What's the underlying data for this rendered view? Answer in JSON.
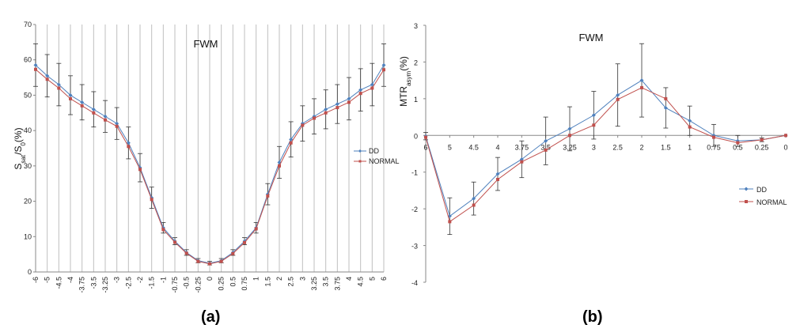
{
  "panel_labels": [
    "(a)",
    "(b)"
  ],
  "chart_data": [
    {
      "type": "line",
      "title": "FWM",
      "ylabel_main": "S",
      "ylabel_sub1": "sat",
      "ylabel_mid": "/S",
      "ylabel_sub2": "0",
      "ylabel_end": "(%)",
      "ylim": [
        0,
        70
      ],
      "yticks": [
        0,
        10,
        20,
        30,
        40,
        50,
        60,
        70
      ],
      "grid": "vertical",
      "legend_position": "right",
      "x": [
        "-6",
        "-5",
        "-4.5",
        "-4",
        "-3.75",
        "-3.5",
        "-3.25",
        "-3",
        "-2.5",
        "-2",
        "-1.5",
        "-1",
        "-0.75",
        "-0.5",
        "-0.25",
        "0",
        "0.25",
        "0.5",
        "0.75",
        "1",
        "1.5",
        "2",
        "2.5",
        "3",
        "3.25",
        "3.5",
        "3.75",
        "4",
        "4.5",
        "5",
        "6"
      ],
      "series": [
        {
          "name": "DD",
          "color": "#4f81bd",
          "values": [
            58.5,
            55.5,
            53,
            50,
            48,
            46,
            44,
            42,
            36.5,
            29.5,
            21,
            12.5,
            8.7,
            5.5,
            3.2,
            2.5,
            3.2,
            5.5,
            8.7,
            12.5,
            22,
            31,
            37.5,
            42,
            44,
            46,
            47.5,
            49,
            51.5,
            53,
            58.5
          ]
        },
        {
          "name": "NORMAL",
          "color": "#c0504d",
          "values": [
            57.3,
            54.5,
            52,
            49,
            47,
            45,
            43,
            41.2,
            35.5,
            29,
            20.5,
            12,
            8.4,
            5.3,
            3,
            2.3,
            3,
            5.2,
            8.3,
            12.2,
            21.5,
            30,
            36.5,
            41.5,
            43.5,
            45,
            46.5,
            48,
            50.5,
            52,
            57.2
          ]
        }
      ],
      "error_bars": [
        6,
        6,
        6,
        5.5,
        5,
        5,
        4.5,
        4.5,
        4.5,
        4,
        3,
        1.5,
        1,
        0.8,
        0.6,
        0.5,
        0.6,
        0.8,
        1,
        1.5,
        3,
        4.5,
        5,
        5,
        5,
        5.5,
        5.5,
        6,
        6,
        6,
        6
      ]
    },
    {
      "type": "line",
      "title": "FWM",
      "ylabel_main": "MTR",
      "ylabel_sub": "asym",
      "ylabel_end": "(%)",
      "ylim": [
        -4,
        3
      ],
      "yticks": [
        -4,
        -3,
        -2,
        -1,
        0,
        1,
        2,
        3
      ],
      "grid": "none",
      "legend_position": "lower-right",
      "x": [
        "6",
        "5",
        "4.5",
        "4",
        "3.75",
        "3.5",
        "3.25",
        "3",
        "2.5",
        "2",
        "1.5",
        "1",
        "0.75",
        "0.5",
        "0.25",
        "0"
      ],
      "series": [
        {
          "name": "DD",
          "color": "#4f81bd",
          "values": [
            -0.02,
            -2.2,
            -1.72,
            -1.05,
            -0.65,
            -0.15,
            0.18,
            0.55,
            1.1,
            1.5,
            0.75,
            0.4,
            0.0,
            -0.15,
            -0.12,
            0.0
          ]
        },
        {
          "name": "NORMAL",
          "color": "#c0504d",
          "values": [
            -0.05,
            -2.35,
            -1.9,
            -1.2,
            -0.72,
            -0.4,
            0.0,
            0.28,
            0.98,
            1.3,
            1.0,
            0.23,
            -0.05,
            -0.2,
            -0.12,
            0.0
          ]
        }
      ],
      "error_bars": [
        0.1,
        0.5,
        0.45,
        0.45,
        0.5,
        0.65,
        0.6,
        0.65,
        0.85,
        1.0,
        0.55,
        0.4,
        0.3,
        0.15,
        0.05,
        0.0
      ]
    }
  ]
}
